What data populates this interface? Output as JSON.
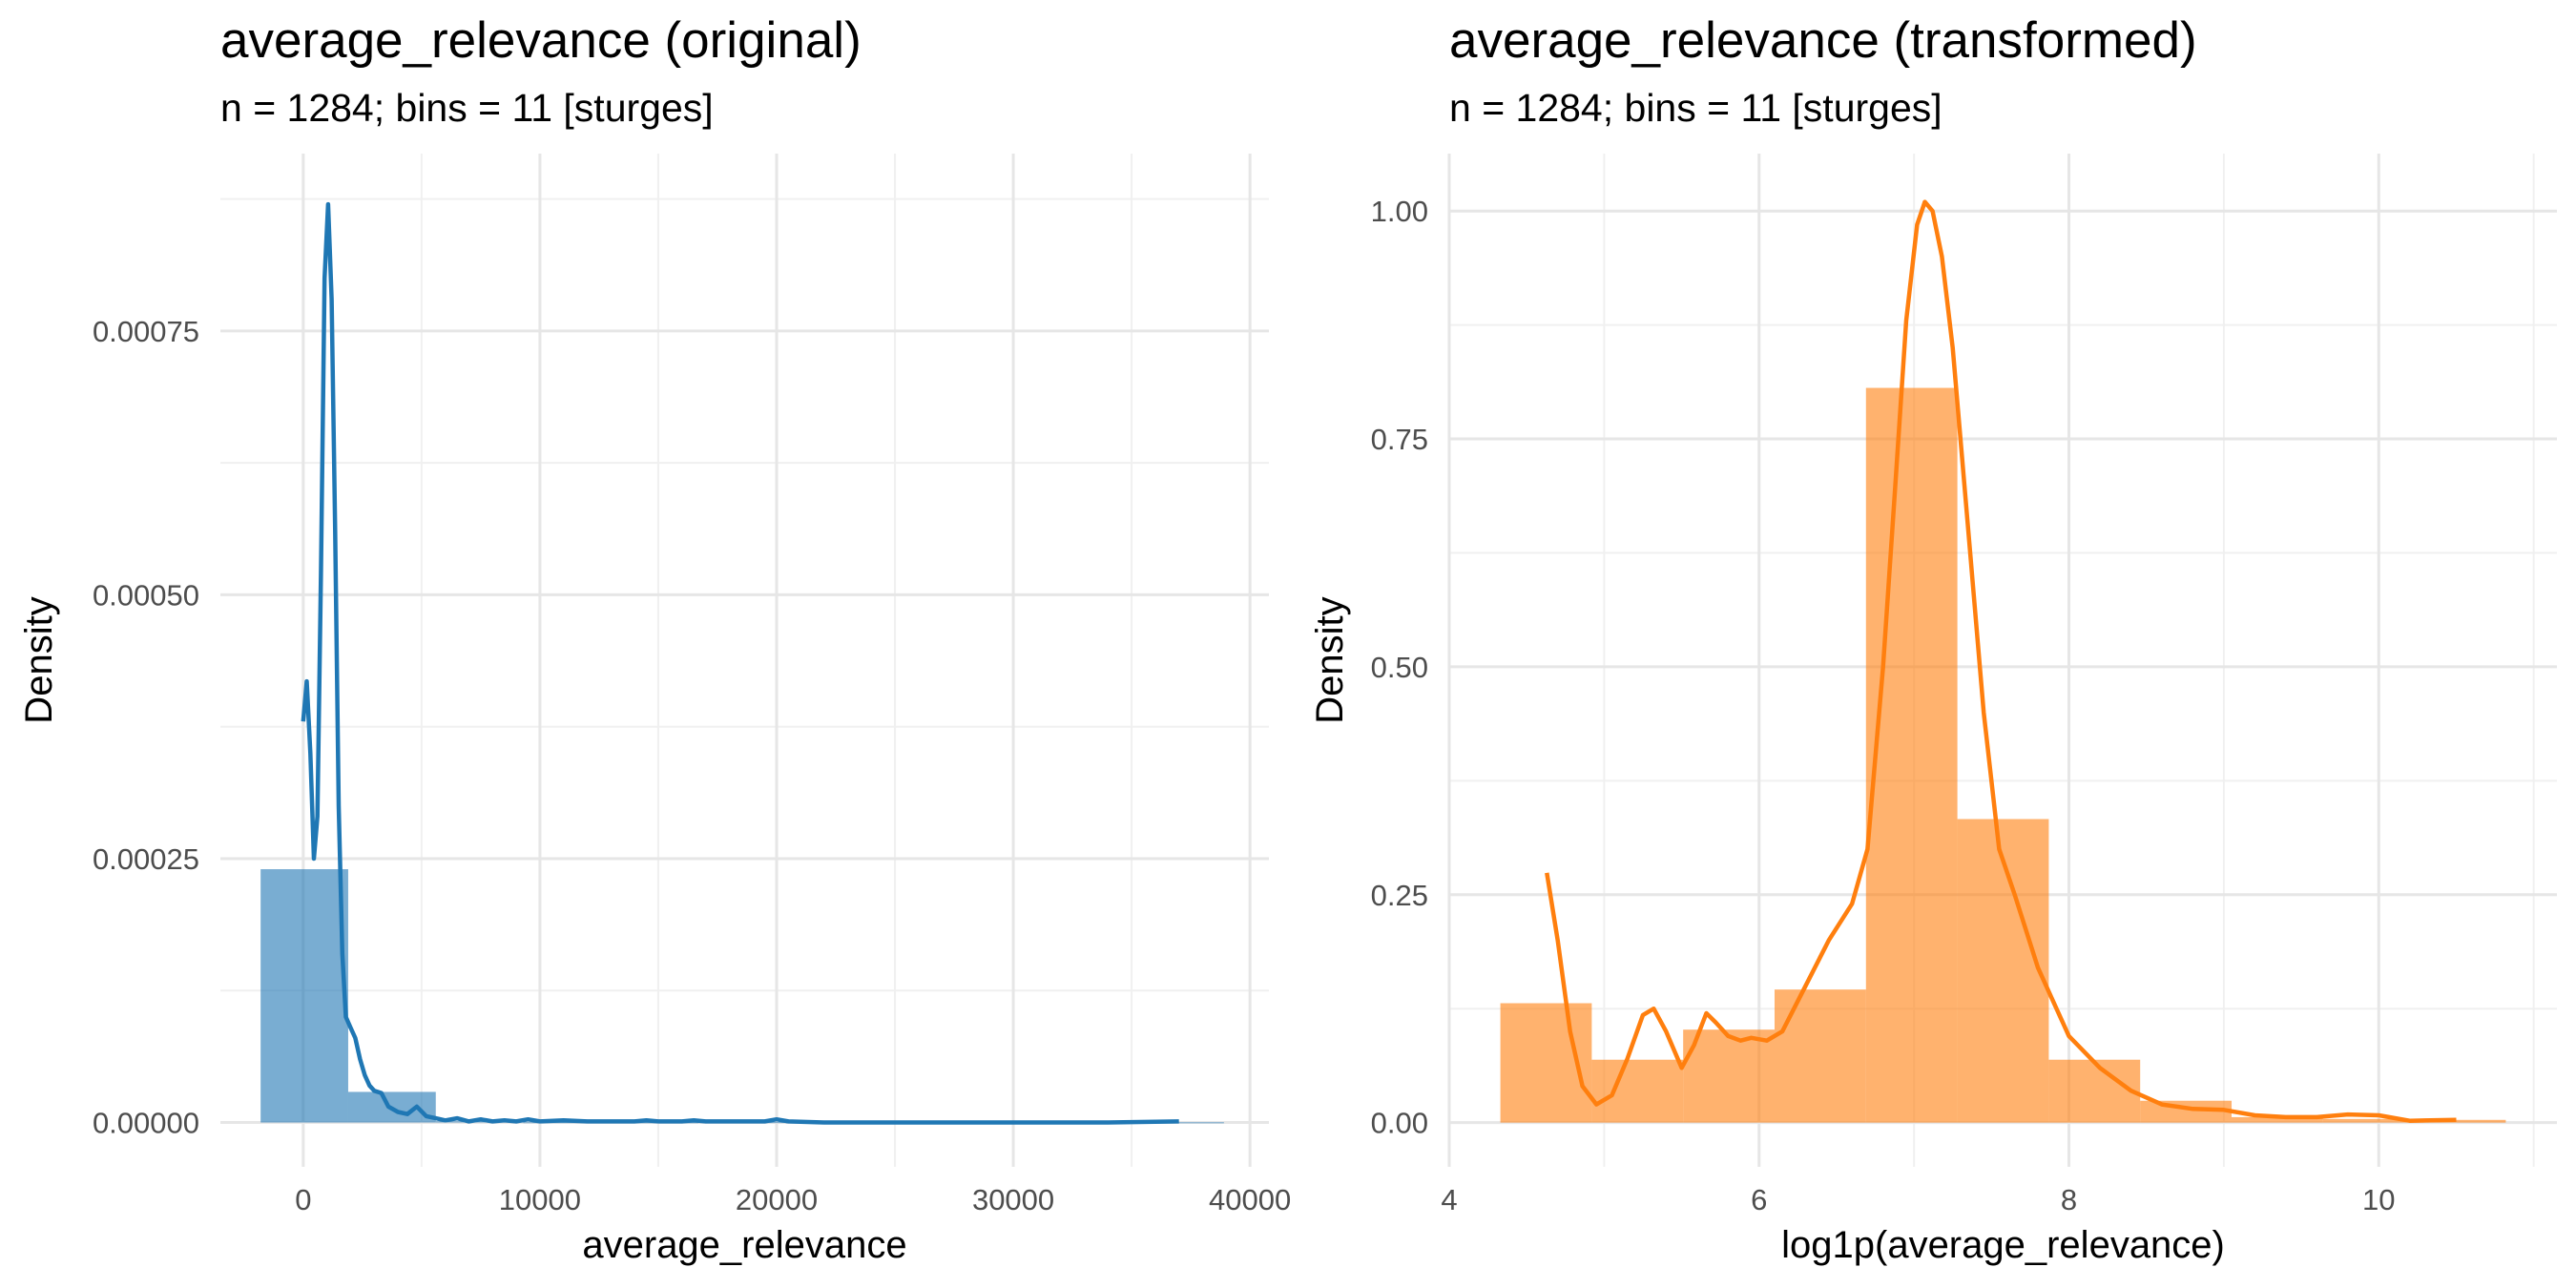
{
  "chart_data": [
    {
      "type": "histogram",
      "title": "average_relevance (original)",
      "subtitle": "n = 1284; bins = 11 [sturges]",
      "xlabel": "average_relevance",
      "ylabel": "Density",
      "color": "#1f77b4",
      "xlim": [
        -3500,
        40800
      ],
      "ylim": [
        -4.2e-05,
        0.000918
      ],
      "x_ticks": [
        0,
        10000,
        20000,
        30000,
        40000
      ],
      "x_tick_labels": [
        "0",
        "10000",
        "20000",
        "30000",
        "40000"
      ],
      "y_ticks": [
        0,
        0.00025,
        0.0005,
        0.00075
      ],
      "y_tick_labels": [
        "0.00000",
        "0.00025",
        "0.00050",
        "0.00075"
      ],
      "grid": true,
      "bins": [
        {
          "x0": -1800,
          "x1": 1900,
          "density": 0.00024
        },
        {
          "x0": 1900,
          "x1": 5600,
          "density": 2.9e-05
        },
        {
          "x0": 5600,
          "x1": 9300,
          "density": 1.2e-06
        },
        {
          "x0": 9300,
          "x1": 13000,
          "density": 3e-07
        },
        {
          "x0": 13000,
          "x1": 16700,
          "density": 2e-07
        },
        {
          "x0": 16700,
          "x1": 20400,
          "density": 4e-07
        },
        {
          "x0": 20400,
          "x1": 24100,
          "density": 1e-07
        },
        {
          "x0": 24100,
          "x1": 27800,
          "density": 1e-07
        },
        {
          "x0": 27800,
          "x1": 31500,
          "density": 1e-07
        },
        {
          "x0": 31500,
          "x1": 35200,
          "density": 1e-07
        },
        {
          "x0": 35200,
          "x1": 38900,
          "density": 2e-07
        }
      ],
      "density_curve": {
        "x": [
          0,
          150,
          300,
          450,
          600,
          750,
          900,
          1050,
          1200,
          1350,
          1500,
          1650,
          1800,
          2000,
          2200,
          2400,
          2600,
          2800,
          3000,
          3300,
          3600,
          4000,
          4400,
          4800,
          5200,
          5600,
          6000,
          6500,
          7000,
          7500,
          8000,
          8500,
          9000,
          9500,
          10000,
          11000,
          12000,
          14000,
          14500,
          15000,
          16000,
          16500,
          17000,
          18000,
          19500,
          20000,
          20500,
          22000,
          26000,
          30000,
          34000,
          37000
        ],
        "y": [
          0.00038,
          0.000418,
          0.00035,
          0.00025,
          0.00029,
          0.00052,
          0.0008,
          0.00087,
          0.00078,
          0.00056,
          0.0003,
          0.00016,
          0.0001,
          9e-05,
          8e-05,
          6e-05,
          4.5e-05,
          3.5e-05,
          3e-05,
          2.8e-05,
          1.5e-05,
          1e-05,
          8e-06,
          1.5e-05,
          6e-06,
          4e-06,
          2e-06,
          4e-06,
          1e-06,
          3e-06,
          1e-06,
          2e-06,
          1e-06,
          3e-06,
          1e-06,
          2e-06,
          1e-06,
          1e-06,
          2e-06,
          1e-06,
          1e-06,
          2e-06,
          1e-06,
          1e-06,
          1e-06,
          3e-06,
          1e-06,
          0.0,
          0.0,
          0.0,
          0.0,
          1e-06
        ]
      }
    },
    {
      "type": "histogram",
      "title": "average_relevance (transformed)",
      "subtitle": "n = 1284; bins = 11 [sturges]",
      "xlabel": "log1p(average_relevance)",
      "ylabel": "Density",
      "color": "#ff7f0e",
      "xlim": [
        4.0,
        11.15
      ],
      "ylim": [
        -0.0485,
        1.063
      ],
      "x_ticks": [
        4,
        6,
        8,
        10
      ],
      "x_tick_labels": [
        "4",
        "6",
        "8",
        "10"
      ],
      "y_ticks": [
        0,
        0.25,
        0.5,
        0.75,
        1.0
      ],
      "y_tick_labels": [
        "0.00",
        "0.25",
        "0.50",
        "0.75",
        "1.00"
      ],
      "grid": true,
      "bins": [
        {
          "x0": 4.33,
          "x1": 4.92,
          "density": 0.131
        },
        {
          "x0": 4.92,
          "x1": 5.51,
          "density": 0.069
        },
        {
          "x0": 5.51,
          "x1": 6.1,
          "density": 0.102
        },
        {
          "x0": 6.1,
          "x1": 6.69,
          "density": 0.146
        },
        {
          "x0": 6.69,
          "x1": 7.28,
          "density": 0.806
        },
        {
          "x0": 7.28,
          "x1": 7.87,
          "density": 0.333
        },
        {
          "x0": 7.87,
          "x1": 8.46,
          "density": 0.069
        },
        {
          "x0": 8.46,
          "x1": 9.05,
          "density": 0.024
        },
        {
          "x0": 9.05,
          "x1": 9.64,
          "density": 0.006
        },
        {
          "x0": 9.64,
          "x1": 10.23,
          "density": 0.004
        },
        {
          "x0": 10.23,
          "x1": 10.82,
          "density": 0.003
        }
      ],
      "density_curve": {
        "x": [
          4.63,
          4.7,
          4.78,
          4.86,
          4.95,
          5.05,
          5.15,
          5.25,
          5.32,
          5.4,
          5.5,
          5.58,
          5.66,
          5.72,
          5.8,
          5.88,
          5.95,
          6.05,
          6.15,
          6.3,
          6.45,
          6.6,
          6.7,
          6.8,
          6.88,
          6.95,
          7.02,
          7.07,
          7.12,
          7.18,
          7.25,
          7.35,
          7.45,
          7.55,
          7.65,
          7.8,
          8.0,
          8.2,
          8.4,
          8.6,
          8.8,
          9.0,
          9.2,
          9.4,
          9.6,
          9.8,
          10.0,
          10.2,
          10.5
        ],
        "y": [
          0.274,
          0.2,
          0.1,
          0.04,
          0.02,
          0.03,
          0.07,
          0.118,
          0.125,
          0.1,
          0.06,
          0.085,
          0.12,
          0.11,
          0.095,
          0.09,
          0.093,
          0.09,
          0.1,
          0.15,
          0.2,
          0.24,
          0.3,
          0.5,
          0.7,
          0.88,
          0.985,
          1.01,
          1.0,
          0.95,
          0.85,
          0.65,
          0.45,
          0.3,
          0.25,
          0.17,
          0.095,
          0.06,
          0.035,
          0.02,
          0.015,
          0.014,
          0.008,
          0.006,
          0.006,
          0.009,
          0.008,
          0.002,
          0.003
        ]
      }
    }
  ]
}
